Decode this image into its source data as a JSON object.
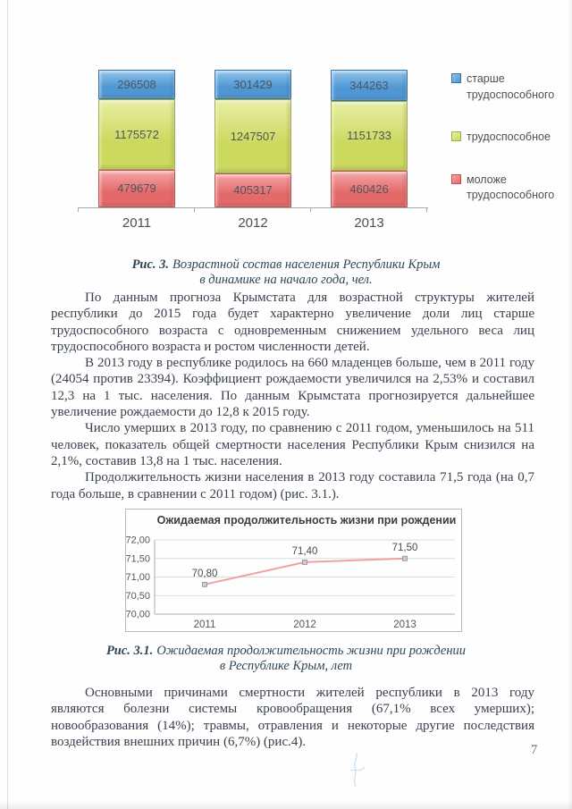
{
  "page": {
    "number": "7"
  },
  "figures": {
    "fig3": {
      "caption_label": "Рис. 3.",
      "caption_line1": "Возрастной состав населения Республики Крым",
      "caption_line2": "в динамике на начало года, чел."
    },
    "fig31": {
      "caption_label": "Рис. 3.1.",
      "caption_line1": "Ожидаемая продолжительность жизни при рождении",
      "caption_line2": "в Республике Крым, лет"
    }
  },
  "text_block1": [
    "По данным прогноза Крымстата для возрастной структуры жителей республики до 2015 года будет характерно увеличение доли лиц старше трудоспособного возраста с одновременным снижением удельного веса лиц трудоспособного возраста и ростом численности детей.",
    "В 2013 году в республике родилось на 660 младенцев больше, чем в 2011 году (24054 против 23394). Коэффициент рождаемости увеличился на 2,53% и составил 12,3 на 1 тыс. населения. По данным Крымстата прогнозируется дальнейшее увеличение рождаемости до 12,8 к 2015 году.",
    "Число умерших в 2013 году, по сравнению с 2011 годом, уменьшилось на 511 человек, показатель общей смертности населения Республики Крым снизился на 2,1%, составив 13,8 на 1 тыс. населения.",
    "Продолжительность жизни населения в 2013 году составила 71,5 года (на 0,7 года больше, в сравнении с 2011 годом) (рис. 3.1.)."
  ],
  "text_block2": [
    "Основными причинами смертности жителей республики в 2013 году являются болезни системы кровообращения (67,1% всех умерших); новообразования (14%); травмы, отравления и некоторые другие последствия воздействия внешних причин (6,7%) (рис.4)."
  ],
  "chart_data": [
    {
      "type": "bar",
      "stacked": true,
      "categories": [
        "2011",
        "2012",
        "2013"
      ],
      "series": [
        {
          "name": "старше трудоспособного",
          "values": [
            296508,
            301429,
            344263
          ],
          "color": "#4f97d4",
          "color_light": "#8fc3ea",
          "color_dark": "#3570a8"
        },
        {
          "name": "трудоспособное",
          "values": [
            1175572,
            1247507,
            1151733
          ],
          "color": "#ccd95f",
          "color_light": "#e9eea6",
          "color_dark": "#9fae3c"
        },
        {
          "name": "моложе трудоспособного",
          "values": [
            479679,
            405317,
            460426
          ],
          "color": "#e46a6a",
          "color_light": "#f4a5a5",
          "color_dark": "#c05050"
        }
      ],
      "legend_position": "right",
      "value_labels": true
    },
    {
      "type": "line",
      "title": "Ожидаемая продолжительность жизни при рождении",
      "x": [
        "2011",
        "2012",
        "2013"
      ],
      "values": [
        70.8,
        71.4,
        71.5
      ],
      "point_labels": [
        "70,80",
        "71,40",
        "71,50"
      ],
      "ylim": [
        70.0,
        72.0
      ],
      "ytick_labels": [
        "70,00",
        "70,50",
        "71,00",
        "71,50",
        "72,00"
      ],
      "grid": true,
      "legend_position": "none",
      "line_color": "#f0a0a0"
    }
  ]
}
